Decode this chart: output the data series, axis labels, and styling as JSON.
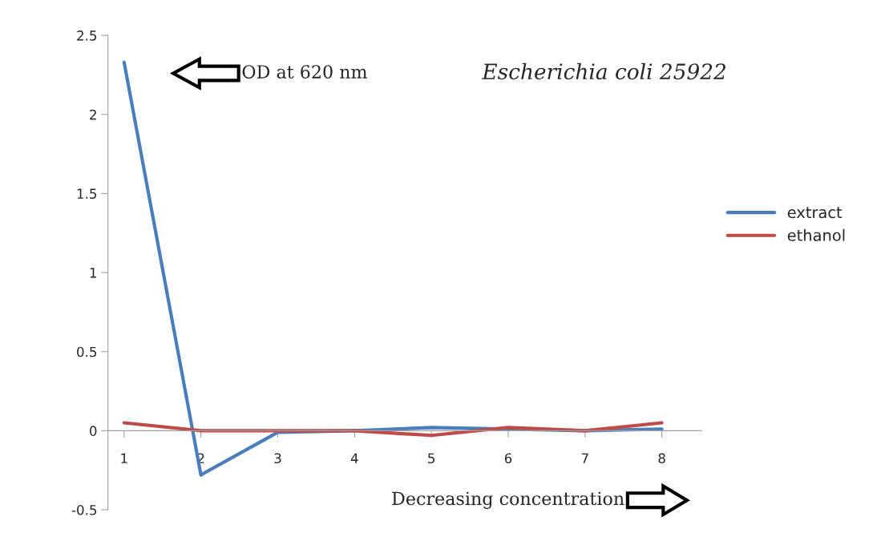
{
  "chart_data": {
    "type": "line",
    "title": "Escherichia coli 25922",
    "xlabel": "Decreasing concentration",
    "ylabel": "OD at 620 nm",
    "categories": [
      "1",
      "2",
      "3",
      "4",
      "5",
      "6",
      "7",
      "8"
    ],
    "series": [
      {
        "name": "extract",
        "color": "#4a7ebb",
        "values": [
          2.33,
          -0.28,
          -0.01,
          0,
          0.02,
          0.01,
          0,
          0.01
        ]
      },
      {
        "name": "ethanol",
        "color": "#be4b48",
        "values": [
          0.05,
          0,
          0,
          0,
          -0.03,
          0.02,
          0,
          0.05
        ]
      }
    ],
    "ylim": [
      -0.5,
      2.5
    ],
    "yticks": [
      -0.5,
      0,
      0.5,
      1,
      1.5,
      2,
      2.5
    ],
    "grid": false,
    "legend": "right",
    "marker": "none",
    "line_style": "solid"
  }
}
